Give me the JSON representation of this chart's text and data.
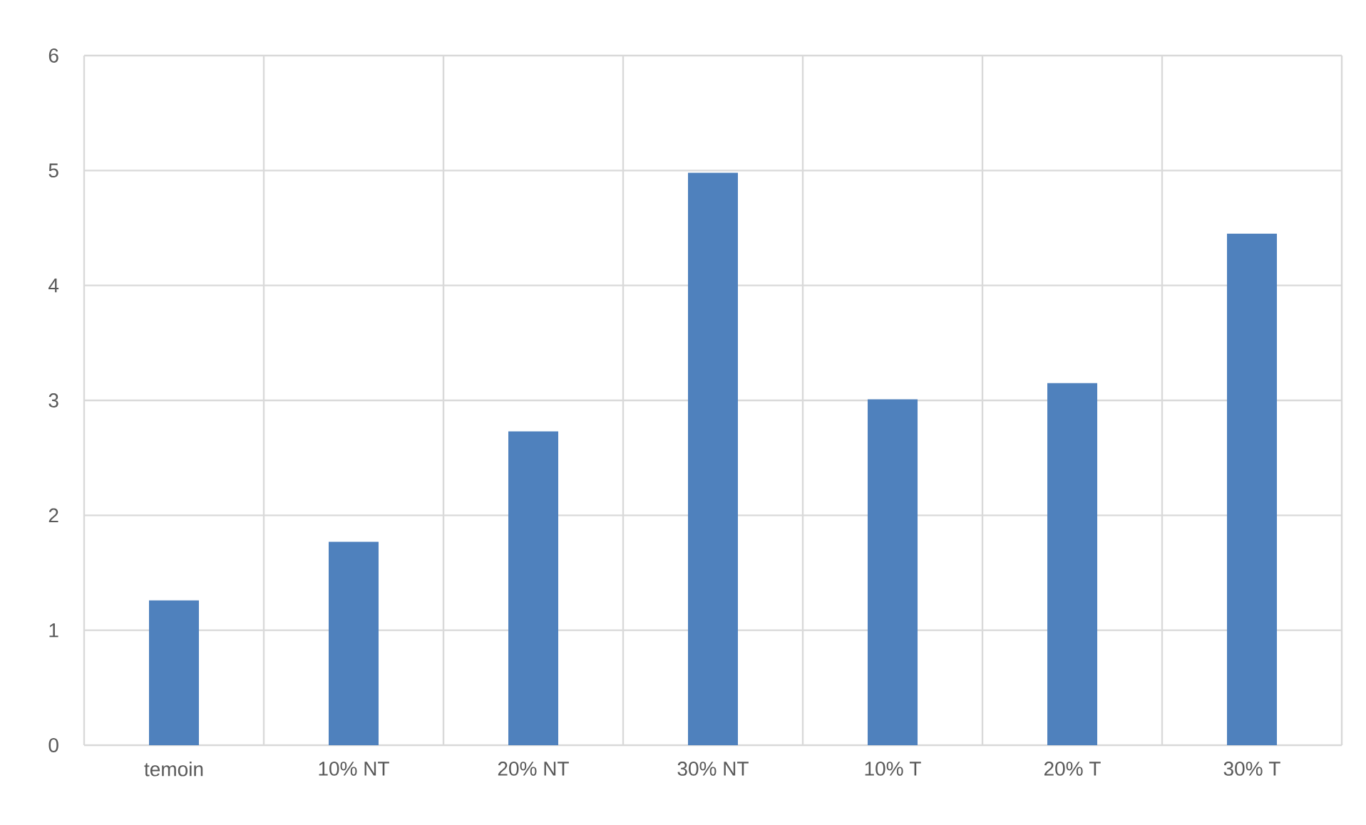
{
  "chart_data": {
    "type": "bar",
    "categories": [
      "temoin",
      "10% NT",
      "20% NT",
      "30% NT",
      "10% T",
      "20% T",
      "30% T"
    ],
    "values": [
      1.26,
      1.77,
      2.73,
      4.98,
      3.01,
      3.15,
      4.45
    ],
    "color": "#4f81bd",
    "ylim": [
      0,
      6
    ],
    "yticks": [
      0,
      1,
      2,
      3,
      4,
      5,
      6
    ],
    "grid": true
  }
}
